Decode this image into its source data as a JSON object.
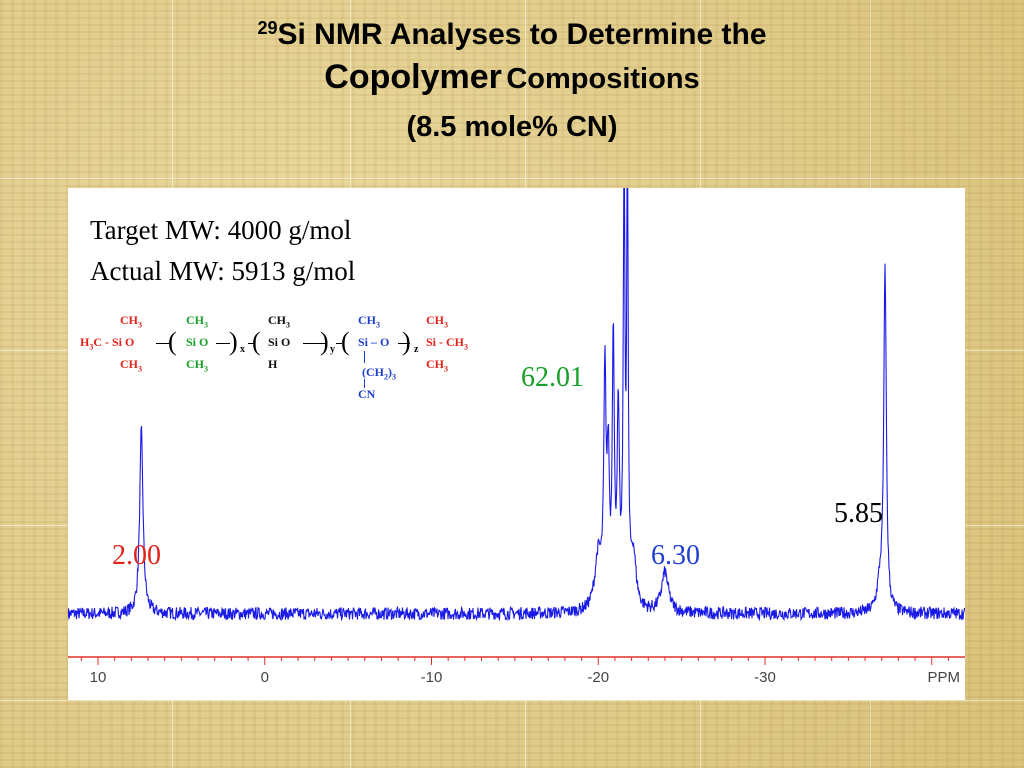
{
  "title": {
    "sup": "29",
    "line1_text": "Si NMR Analyses to Determine the",
    "line2_big": "Copolymer",
    "line2_small": "Compositions",
    "line3": "(8.5 mole% CN)"
  },
  "info": {
    "target_mw": "Target MW: 4000 g/mol",
    "actual_mw": "Actual MW: 5913 g/mol"
  },
  "structure": {
    "ch3": "CH",
    "three": "3",
    "two": "2",
    "h3c": "H",
    "c_dash_si": "C - Si",
    "o": "O",
    "si": "Si",
    "si_o": "Si",
    "h": "H",
    "ch2_3": "(CH",
    "cn": "CN",
    "si_dash_ch3": "Si - CH",
    "x": "x",
    "y": "y",
    "z": "z",
    "colors": {
      "end": "#e2231a",
      "x_unit": "#16a028",
      "y_unit": "#111111",
      "z_unit": "#1f3fd0"
    }
  },
  "peak_labels": [
    {
      "text": "2.00",
      "color": "#e2231a"
    },
    {
      "text": "62.01",
      "color": "#16a028"
    },
    {
      "text": "6.30",
      "color": "#1f3fd0"
    },
    {
      "text": "5.85",
      "color": "#000000"
    }
  ],
  "chart_data": {
    "type": "line",
    "title": "29Si NMR Analyses to Determine the Copolymer Compositions (8.5 mole% CN)",
    "xlabel": "PPM",
    "ylabel": "",
    "x_reversed": true,
    "xlim": [
      11,
      -42
    ],
    "ylim": [
      0,
      100
    ],
    "x_ticks": [
      10,
      0,
      -10,
      -20,
      -30
    ],
    "x_tick_labels": [
      "10",
      "0",
      "-10",
      "-20",
      "-30"
    ],
    "x_unit_label": "PPM",
    "series": [
      {
        "color": "#1a1ae6",
        "baseline": 5,
        "peaks": [
          {
            "ppm": 7.4,
            "height": 41,
            "width": 0.12
          },
          {
            "ppm": -20.0,
            "height": 12,
            "width": 0.25
          },
          {
            "ppm": -20.4,
            "height": 50,
            "width": 0.08
          },
          {
            "ppm": -20.6,
            "height": 30,
            "width": 0.08
          },
          {
            "ppm": -20.9,
            "height": 60,
            "width": 0.07
          },
          {
            "ppm": -21.2,
            "height": 42,
            "width": 0.08
          },
          {
            "ppm": -21.55,
            "height": 96,
            "width": 0.06
          },
          {
            "ppm": -21.75,
            "height": 100,
            "width": 0.05
          },
          {
            "ppm": -22.1,
            "height": 12,
            "width": 0.2
          },
          {
            "ppm": -24.0,
            "height": 9,
            "width": 0.25
          },
          {
            "ppm": -37.2,
            "height": 77,
            "width": 0.09
          },
          {
            "ppm": -36.9,
            "height": 6,
            "width": 0.2
          }
        ]
      }
    ],
    "integrals": [
      {
        "label": "2.00",
        "ppm": 7.4
      },
      {
        "label": "62.01",
        "ppm": -21.5
      },
      {
        "label": "6.30",
        "ppm": -24.0
      },
      {
        "label": "5.85",
        "ppm": -37.2
      }
    ]
  }
}
